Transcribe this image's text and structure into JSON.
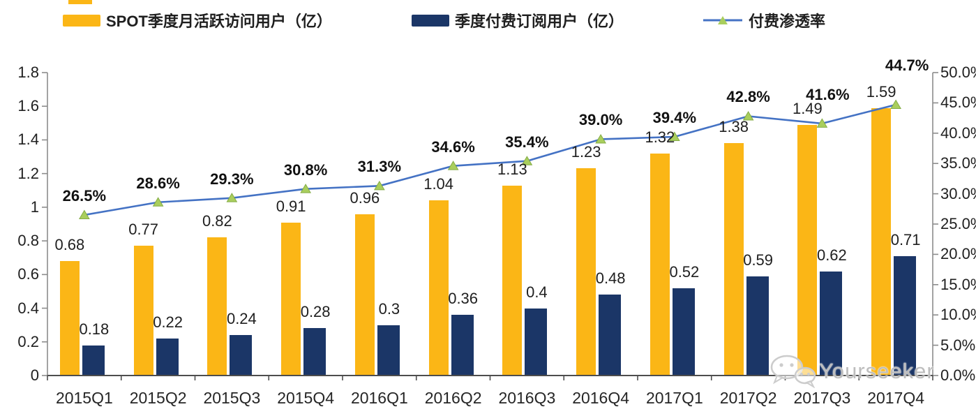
{
  "legend": [
    {
      "label": "SPOT季度月活跃访问用户（亿）",
      "swatch": "bar",
      "color": "#FBB616"
    },
    {
      "label": "季度付费订阅用户（亿）",
      "swatch": "bar",
      "color": "#1B3667"
    },
    {
      "label": "付费渗透率",
      "swatch": "line-marker",
      "line_color": "#4472C4",
      "marker_color": "#A9CE5D"
    }
  ],
  "axes": {
    "left_tick_labels": [
      "0",
      "0.2",
      "0.4",
      "0.6",
      "0.8",
      "1",
      "1.2",
      "1.4",
      "1.6",
      "1.8"
    ],
    "right_tick_labels": [
      "0.0%",
      "5.0%",
      "10.0%",
      "15.0%",
      "20.0%",
      "25.0%",
      "30.0%",
      "35.0%",
      "40.0%",
      "45.0%",
      "50.0%"
    ]
  },
  "watermark": {
    "icon": "wechat-icon",
    "text": "Yourseeker"
  },
  "colors": {
    "mau_bar": "#FBB616",
    "sub_bar": "#1B3667",
    "penetration_line": "#4472C4",
    "penetration_marker": "#A9CE5D",
    "penetration_marker_edge": "#84AC45",
    "axis_side": "#8C8C8C",
    "axis_bottom": "#4D4D4D",
    "text": "#1f1f1f"
  },
  "chart_data": {
    "type": "bar",
    "subtype": "grouped-bars-with-line",
    "categories": [
      "2015Q1",
      "2015Q2",
      "2015Q3",
      "2015Q4",
      "2016Q1",
      "2016Q2",
      "2016Q3",
      "2016Q4",
      "2017Q1",
      "2017Q2",
      "2017Q3",
      "2017Q4"
    ],
    "series": [
      {
        "name": "SPOT季度月活跃访问用户（亿）",
        "type": "bar",
        "axis": "left",
        "color": "#FBB616",
        "values": [
          0.68,
          0.77,
          0.82,
          0.91,
          0.96,
          1.04,
          1.13,
          1.23,
          1.32,
          1.38,
          1.49,
          1.59
        ],
        "labels": [
          "0.68",
          "0.77",
          "0.82",
          "0.91",
          "0.96",
          "1.04",
          "1.13",
          "1.23",
          "1.32",
          "1.38",
          "1.49",
          "1.59"
        ]
      },
      {
        "name": "季度付费订阅用户（亿）",
        "type": "bar",
        "axis": "left",
        "color": "#1B3667",
        "values": [
          0.18,
          0.22,
          0.24,
          0.28,
          0.3,
          0.36,
          0.4,
          0.48,
          0.52,
          0.59,
          0.62,
          0.71
        ],
        "labels": [
          "0.18",
          "0.22",
          "0.24",
          "0.28",
          "0.3",
          "0.36",
          "0.4",
          "0.48",
          "0.52",
          "0.59",
          "0.62",
          "0.71"
        ]
      },
      {
        "name": "付费渗透率",
        "type": "line",
        "axis": "right",
        "color": "#4472C4",
        "marker": "triangle",
        "marker_color": "#A9CE5D",
        "values": [
          26.5,
          28.6,
          29.3,
          30.8,
          31.3,
          34.6,
          35.4,
          39.0,
          39.4,
          42.8,
          41.6,
          44.7
        ],
        "labels": [
          "26.5%",
          "28.6%",
          "29.3%",
          "30.8%",
          "31.3%",
          "34.6%",
          "35.4%",
          "39.0%",
          "39.4%",
          "42.8%",
          "41.6%",
          "44.7%"
        ]
      }
    ],
    "left_ylim": [
      0,
      1.8
    ],
    "right_ylim": [
      0,
      50
    ],
    "grid": false,
    "legend_position": "top"
  }
}
